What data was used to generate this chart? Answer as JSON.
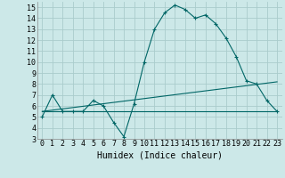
{
  "background_color": "#cce8e8",
  "grid_color": "#aacccc",
  "line_color": "#006666",
  "xlabel": "Humidex (Indice chaleur)",
  "xlim": [
    -0.5,
    23.5
  ],
  "ylim": [
    3,
    15.5
  ],
  "xticks": [
    0,
    1,
    2,
    3,
    4,
    5,
    6,
    7,
    8,
    9,
    10,
    11,
    12,
    13,
    14,
    15,
    16,
    17,
    18,
    19,
    20,
    21,
    22,
    23
  ],
  "yticks": [
    3,
    4,
    5,
    6,
    7,
    8,
    9,
    10,
    11,
    12,
    13,
    14,
    15
  ],
  "line1_x": [
    0,
    1,
    2,
    3,
    4,
    5,
    6,
    7,
    8,
    9,
    10,
    11,
    12,
    13,
    14,
    15,
    16,
    17,
    18,
    19,
    20,
    21,
    22,
    23
  ],
  "line1_y": [
    5.0,
    7.0,
    5.5,
    5.5,
    5.5,
    6.5,
    6.0,
    4.5,
    3.2,
    6.2,
    10.0,
    13.0,
    14.5,
    15.2,
    14.8,
    14.0,
    14.3,
    13.5,
    12.2,
    10.5,
    8.3,
    8.0,
    6.5,
    5.5
  ],
  "line2_x": [
    0,
    23
  ],
  "line2_y": [
    5.5,
    8.2
  ],
  "line3_x": [
    0,
    23
  ],
  "line3_y": [
    5.5,
    5.5
  ],
  "font_size_label": 7,
  "font_size_tick": 6,
  "tick_label_font": "monospace"
}
